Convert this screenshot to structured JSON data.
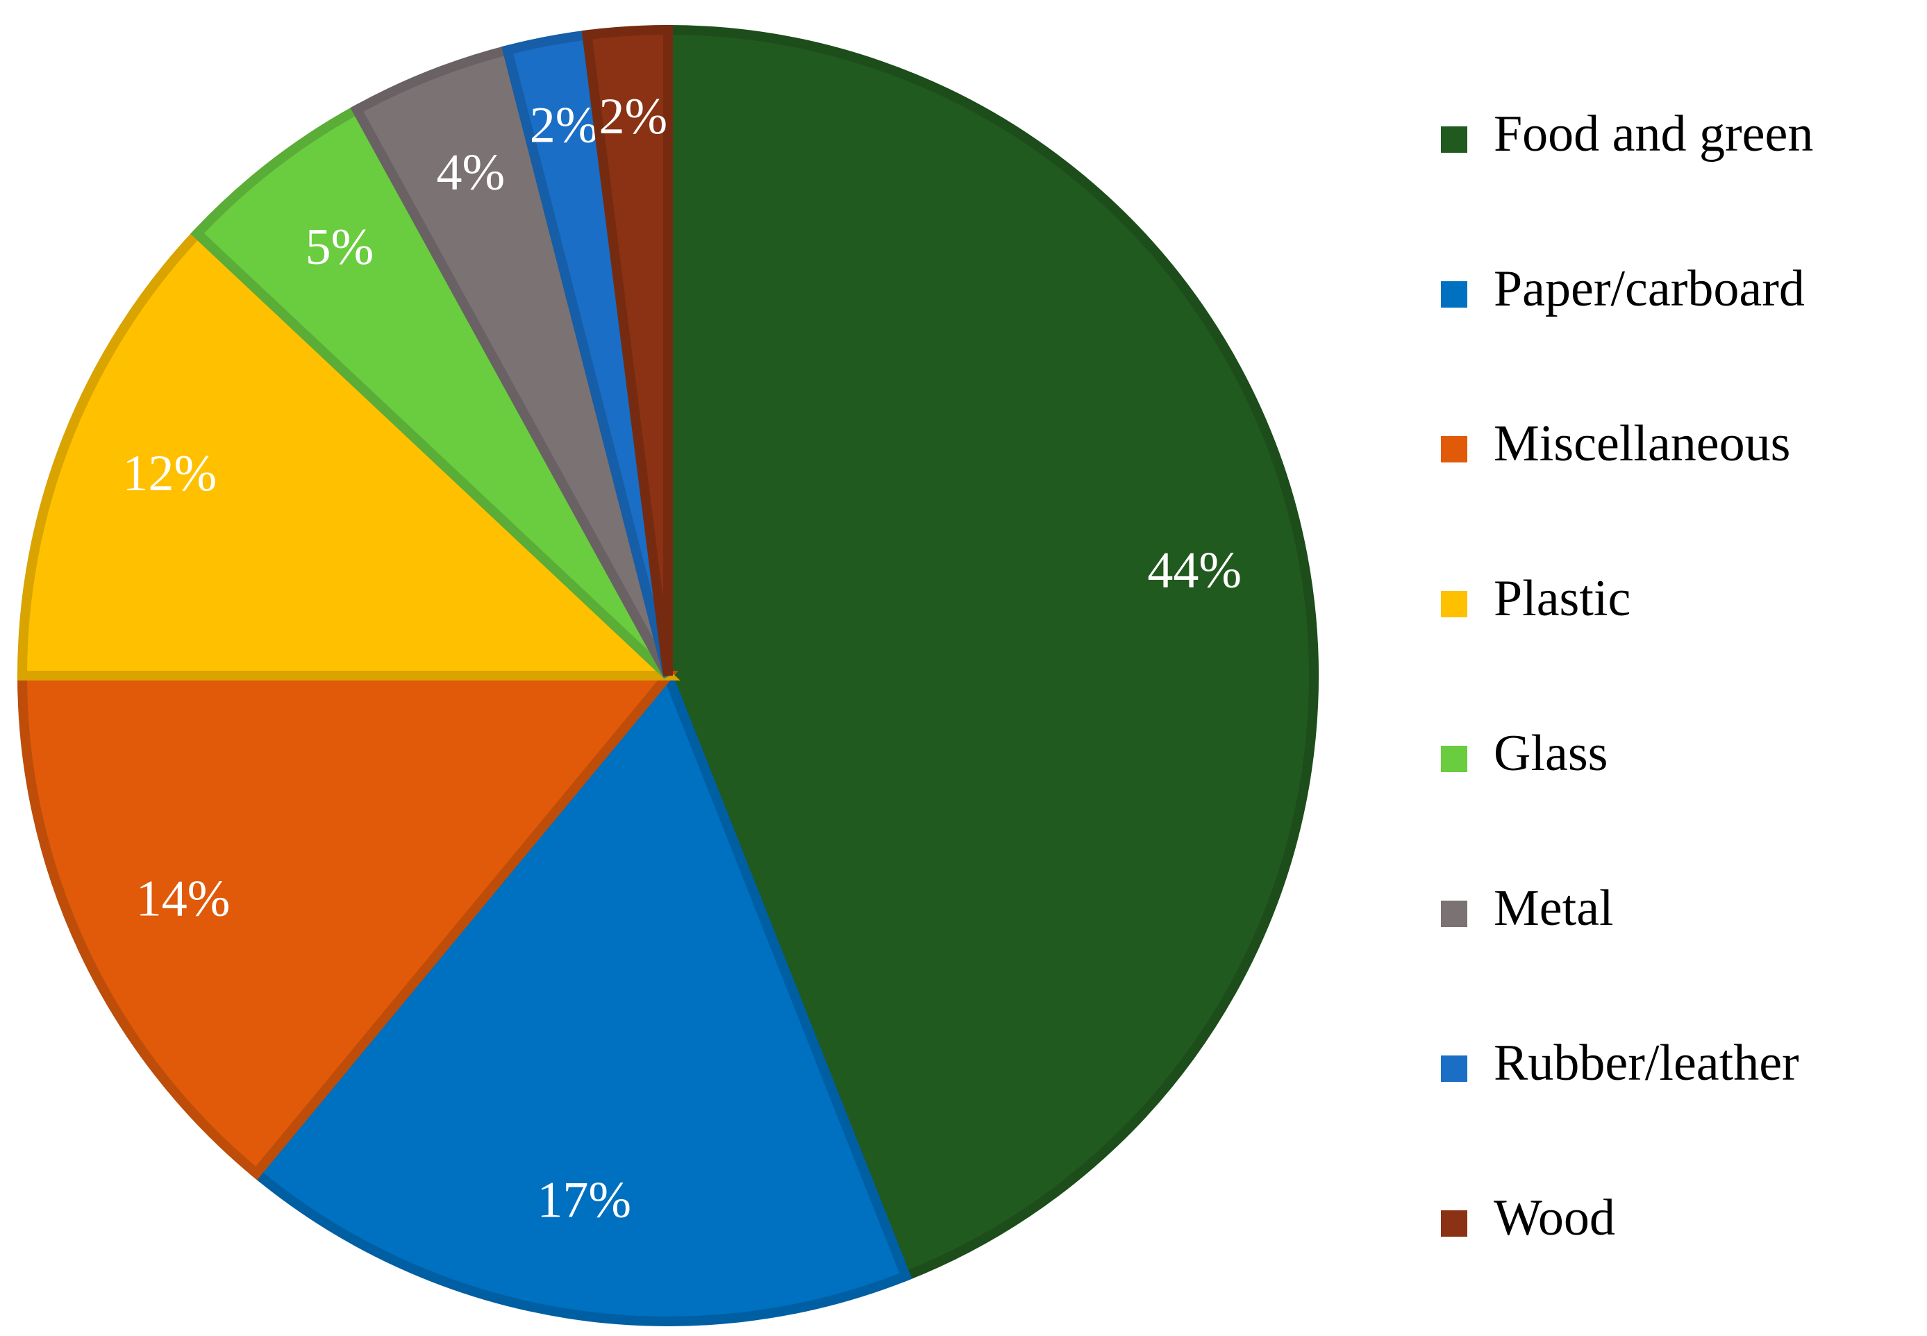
{
  "chart_data": {
    "type": "pie",
    "categories": [
      "Food and green",
      "Paper/carboard",
      "Miscellaneous",
      "Plastic",
      "Glass",
      "Metal",
      "Rubber/leather",
      "Wood"
    ],
    "values": [
      44,
      17,
      14,
      12,
      5,
      4,
      2,
      2
    ],
    "value_labels": [
      "44%",
      "17%",
      "14%",
      "12%",
      "5%",
      "4%",
      "2%",
      "2%"
    ],
    "colors": [
      "#215a1e",
      "#0070c0",
      "#e05a0a",
      "#ffc000",
      "#6acc3f",
      "#7b7274",
      "#1a6ec5",
      "#8b3214"
    ],
    "legend": "right"
  }
}
